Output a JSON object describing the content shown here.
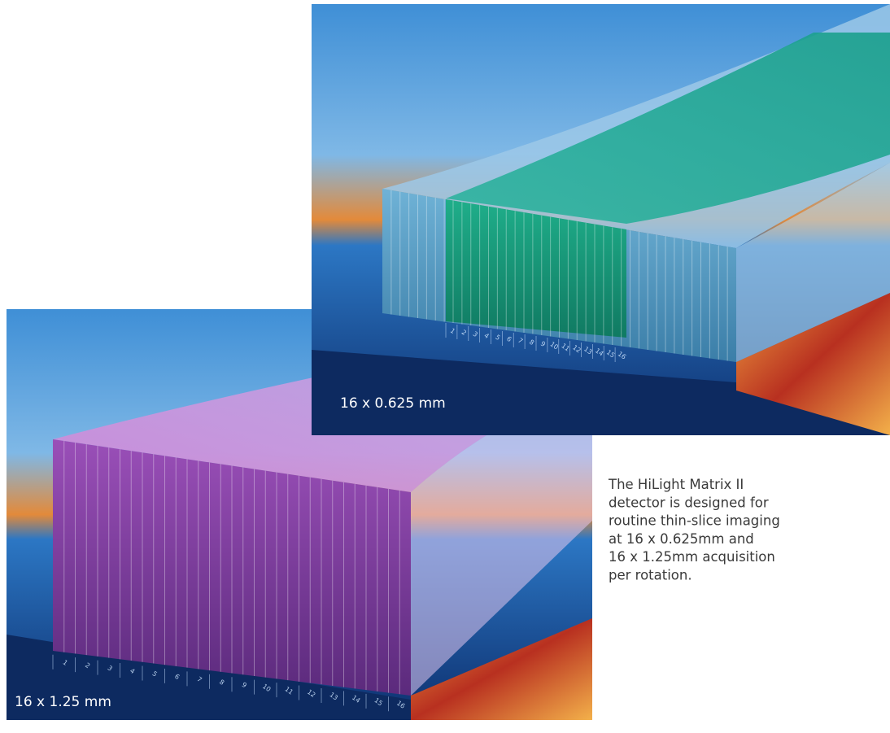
{
  "bottom_panel": {
    "caption": "16 x 1.25 mm",
    "scale_labels": [
      "1",
      "2",
      "3",
      "4",
      "5",
      "6",
      "7",
      "8",
      "9",
      "10",
      "11",
      "12",
      "13",
      "14",
      "15",
      "16"
    ]
  },
  "top_panel": {
    "caption": "16 x 0.625 mm",
    "scale_labels": [
      "1",
      "2",
      "3",
      "4",
      "5",
      "6",
      "7",
      "8",
      "9",
      "10",
      "11",
      "12",
      "13",
      "14",
      "15",
      "16"
    ]
  },
  "description": {
    "lines": [
      "The HiLight Matrix II",
      "detector is designed for",
      "routine thin-slice imaging",
      "at 16 x 0.625mm and",
      "16 x 1.25mm acquisition",
      "per rotation."
    ]
  }
}
